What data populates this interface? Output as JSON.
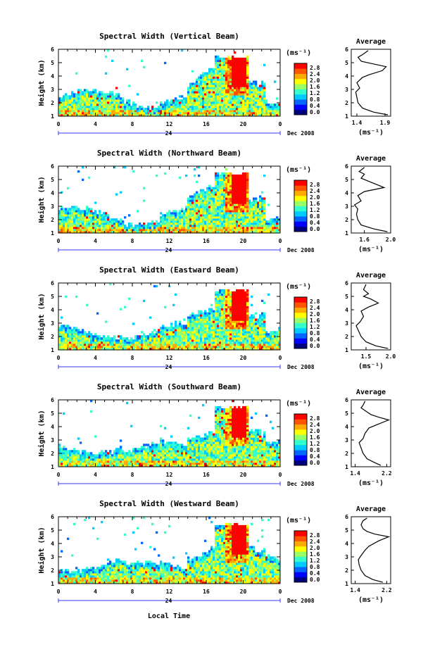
{
  "figure": {
    "xlabel": "Local Time",
    "colorbar_unit": "(ms⁻¹)",
    "avg_unit": "(ms⁻¹)",
    "avg_title": "Average",
    "date_label": "Dec 2008",
    "day_label": "24",
    "colormap": [
      "#00007f",
      "#0000ff",
      "#0066ff",
      "#00ccff",
      "#33ffcc",
      "#99ff66",
      "#ffff00",
      "#ffaa00",
      "#ff5500",
      "#ff0000"
    ]
  },
  "chart_data": [
    {
      "type": "heatmap",
      "title": "Spectral Width (Vertical Beam)",
      "xlabel": "Local Time",
      "ylabel": "Height (km)",
      "xlim": [
        0,
        24
      ],
      "xticks": [
        "0",
        "4",
        "8",
        "12",
        "16",
        "20",
        "0"
      ],
      "ylim": [
        1,
        6
      ],
      "yticks": [
        "1",
        "2",
        "3",
        "4",
        "5",
        "6"
      ],
      "colorbar_ticks": [
        "0.0",
        "0.4",
        "0.8",
        "1.2",
        "1.6",
        "2.0",
        "2.4",
        "2.8"
      ],
      "colorbar_range": [
        0,
        2.8
      ],
      "average": {
        "title": "Average",
        "xlim": [
          1.3,
          2.0
        ],
        "xticks": [
          "1.4",
          "1.9"
        ],
        "ylim": [
          1,
          6
        ],
        "yticks": [
          "1",
          "2",
          "3",
          "4",
          "5",
          "6"
        ],
        "profile": [
          [
            1.95,
            1.1
          ],
          [
            1.7,
            1.3
          ],
          [
            1.5,
            1.6
          ],
          [
            1.42,
            2.0
          ],
          [
            1.4,
            2.4
          ],
          [
            1.38,
            2.8
          ],
          [
            1.45,
            3.1
          ],
          [
            1.4,
            3.5
          ],
          [
            1.5,
            3.9
          ],
          [
            1.62,
            4.1
          ],
          [
            1.85,
            4.4
          ],
          [
            1.92,
            4.7
          ],
          [
            1.7,
            4.9
          ],
          [
            1.48,
            5.1
          ],
          [
            1.42,
            5.4
          ],
          [
            1.5,
            5.6
          ],
          [
            1.6,
            5.9
          ]
        ]
      }
    },
    {
      "type": "heatmap",
      "title": "Spectral Width (Northward Beam)",
      "xlabel": "Local Time",
      "ylabel": "Height (km)",
      "xlim": [
        0,
        24
      ],
      "xticks": [
        "0",
        "4",
        "8",
        "12",
        "16",
        "20",
        "0"
      ],
      "ylim": [
        1,
        6
      ],
      "yticks": [
        "1",
        "2",
        "3",
        "4",
        "5",
        "6"
      ],
      "colorbar_ticks": [
        "0.0",
        "0.4",
        "0.8",
        "1.2",
        "1.6",
        "2.0",
        "2.4",
        "2.8"
      ],
      "colorbar_range": [
        0,
        2.8
      ],
      "average": {
        "title": "Average",
        "xlim": [
          1.4,
          2.0
        ],
        "xticks": [
          "1.6",
          "2.0"
        ],
        "ylim": [
          1,
          6
        ],
        "yticks": [
          "1",
          "2",
          "3",
          "4",
          "5",
          "6"
        ],
        "profile": [
          [
            1.95,
            1.1
          ],
          [
            1.75,
            1.3
          ],
          [
            1.55,
            1.6
          ],
          [
            1.5,
            2.0
          ],
          [
            1.48,
            2.4
          ],
          [
            1.5,
            2.8
          ],
          [
            1.45,
            3.1
          ],
          [
            1.55,
            3.4
          ],
          [
            1.5,
            3.8
          ],
          [
            1.6,
            4.1
          ],
          [
            1.9,
            4.4
          ],
          [
            1.8,
            4.6
          ],
          [
            1.65,
            4.9
          ],
          [
            1.55,
            5.1
          ],
          [
            1.6,
            5.4
          ],
          [
            1.52,
            5.6
          ],
          [
            1.6,
            5.9
          ]
        ]
      }
    },
    {
      "type": "heatmap",
      "title": "Spectral Width (Eastward Beam)",
      "xlabel": "Local Time",
      "ylabel": "Height (km)",
      "xlim": [
        0,
        24
      ],
      "xticks": [
        "0",
        "4",
        "8",
        "12",
        "16",
        "20",
        "0"
      ],
      "ylim": [
        1,
        6
      ],
      "yticks": [
        "1",
        "2",
        "3",
        "4",
        "5",
        "6"
      ],
      "colorbar_ticks": [
        "0.0",
        "0.4",
        "0.8",
        "1.2",
        "1.6",
        "2.0",
        "2.4",
        "2.8"
      ],
      "colorbar_range": [
        0,
        2.8
      ],
      "average": {
        "title": "Average",
        "xlim": [
          1.2,
          2.0
        ],
        "xticks": [
          "1.5",
          "2.0"
        ],
        "ylim": [
          1,
          6
        ],
        "yticks": [
          "1",
          "2",
          "3",
          "4",
          "5",
          "6"
        ],
        "profile": [
          [
            1.95,
            1.1
          ],
          [
            1.7,
            1.3
          ],
          [
            1.5,
            1.6
          ],
          [
            1.4,
            2.0
          ],
          [
            1.35,
            2.4
          ],
          [
            1.3,
            2.8
          ],
          [
            1.38,
            3.1
          ],
          [
            1.45,
            3.5
          ],
          [
            1.4,
            3.9
          ],
          [
            1.55,
            4.2
          ],
          [
            1.75,
            4.5
          ],
          [
            1.6,
            4.8
          ],
          [
            1.45,
            5.0
          ],
          [
            1.55,
            5.2
          ],
          [
            1.45,
            5.5
          ],
          [
            1.5,
            5.9
          ]
        ]
      }
    },
    {
      "type": "heatmap",
      "title": "Spectral Width (Southward Beam)",
      "xlabel": "Local Time",
      "ylabel": "Height (km)",
      "xlim": [
        0,
        24
      ],
      "xticks": [
        "0",
        "4",
        "8",
        "12",
        "16",
        "20",
        "0"
      ],
      "ylim": [
        1,
        6
      ],
      "yticks": [
        "1",
        "2",
        "3",
        "4",
        "5",
        "6"
      ],
      "colorbar_ticks": [
        "0.0",
        "0.4",
        "0.8",
        "1.2",
        "1.6",
        "2.0",
        "2.4",
        "2.8"
      ],
      "colorbar_range": [
        0,
        2.8
      ],
      "average": {
        "title": "Average",
        "xlim": [
          1.3,
          2.3
        ],
        "xticks": [
          "1.4",
          "2.2"
        ],
        "ylim": [
          1,
          6
        ],
        "yticks": [
          "1",
          "2",
          "3",
          "4",
          "5",
          "6"
        ],
        "profile": [
          [
            2.05,
            1.1
          ],
          [
            1.9,
            1.3
          ],
          [
            1.7,
            1.6
          ],
          [
            1.6,
            2.0
          ],
          [
            1.55,
            2.4
          ],
          [
            1.5,
            2.8
          ],
          [
            1.6,
            3.1
          ],
          [
            1.65,
            3.5
          ],
          [
            1.75,
            3.9
          ],
          [
            2.0,
            4.2
          ],
          [
            2.25,
            4.5
          ],
          [
            2.0,
            4.7
          ],
          [
            1.8,
            4.9
          ],
          [
            1.7,
            5.1
          ],
          [
            1.55,
            5.4
          ],
          [
            1.6,
            5.6
          ],
          [
            1.65,
            5.9
          ]
        ]
      }
    },
    {
      "type": "heatmap",
      "title": "Spectral Width (Westward Beam)",
      "xlabel": "Local Time",
      "ylabel": "Height (km)",
      "xlim": [
        0,
        24
      ],
      "xticks": [
        "0",
        "4",
        "8",
        "12",
        "16",
        "20",
        "0"
      ],
      "ylim": [
        1,
        6
      ],
      "yticks": [
        "1",
        "2",
        "3",
        "4",
        "5",
        "6"
      ],
      "colorbar_ticks": [
        "0.0",
        "0.4",
        "0.8",
        "1.2",
        "1.6",
        "2.0",
        "2.4",
        "2.8"
      ],
      "colorbar_range": [
        0,
        2.8
      ],
      "average": {
        "title": "Average",
        "xlim": [
          1.3,
          2.3
        ],
        "xticks": [
          "1.4",
          "2.2"
        ],
        "ylim": [
          1,
          6
        ],
        "yticks": [
          "1",
          "2",
          "3",
          "4",
          "5",
          "6"
        ],
        "profile": [
          [
            2.1,
            1.1
          ],
          [
            1.85,
            1.3
          ],
          [
            1.65,
            1.6
          ],
          [
            1.55,
            2.0
          ],
          [
            1.5,
            2.4
          ],
          [
            1.48,
            2.8
          ],
          [
            1.55,
            3.1
          ],
          [
            1.65,
            3.5
          ],
          [
            1.75,
            3.8
          ],
          [
            2.0,
            4.2
          ],
          [
            2.25,
            4.5
          ],
          [
            1.9,
            4.7
          ],
          [
            1.7,
            4.9
          ],
          [
            1.6,
            5.1
          ],
          [
            1.55,
            5.4
          ],
          [
            1.6,
            5.7
          ],
          [
            1.7,
            5.9
          ]
        ]
      }
    }
  ]
}
